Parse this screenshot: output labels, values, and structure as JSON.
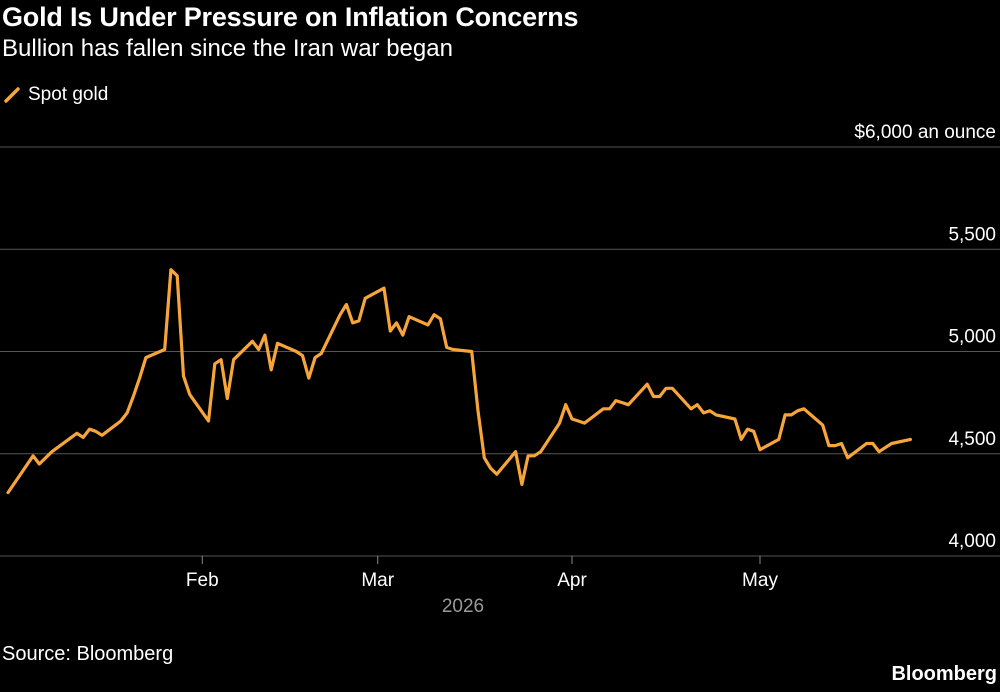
{
  "header": {
    "title": "Gold Is Under Pressure on Inflation Concerns",
    "subtitle": "Bullion has fallen since the Iran war began"
  },
  "footer": {
    "source": "Source: Bloomberg",
    "brand": "Bloomberg"
  },
  "colors": {
    "background": "#000000",
    "series": "#f7a53a",
    "grid": "#555555",
    "text": "#ffffff",
    "muted": "#9a9a9a"
  },
  "chart_data": {
    "type": "line",
    "title": "Gold Is Under Pressure on Inflation Concerns",
    "subtitle": "Bullion has fallen since the Iran war began",
    "grid": true,
    "legend_position": "top-left",
    "ylim": [
      4000,
      6000
    ],
    "y_ticks": [
      {
        "value": 4000,
        "label": "4,000"
      },
      {
        "value": 4500,
        "label": "4,500"
      },
      {
        "value": 5000,
        "label": "5,000"
      },
      {
        "value": 5500,
        "label": "5,500"
      },
      {
        "value": 6000,
        "label": "$6,000 an ounce"
      }
    ],
    "xlim": [
      "2026-01-01",
      "2026-05-31"
    ],
    "x_ticks": [
      {
        "date": "2026-02-01",
        "label": "Feb"
      },
      {
        "date": "2026-03-01",
        "label": "Mar"
      },
      {
        "date": "2026-04-01",
        "label": "Apr"
      },
      {
        "date": "2026-05-01",
        "label": "May"
      }
    ],
    "x_year_label": "2026",
    "series": [
      {
        "name": "Spot gold",
        "x": [
          "2026-01-01",
          "2026-01-05",
          "2026-01-06",
          "2026-01-08",
          "2026-01-12",
          "2026-01-13",
          "2026-01-14",
          "2026-01-15",
          "2026-01-16",
          "2026-01-19",
          "2026-01-20",
          "2026-01-21",
          "2026-01-22",
          "2026-01-23",
          "2026-01-26",
          "2026-01-27",
          "2026-01-28",
          "2026-01-29",
          "2026-01-30",
          "2026-02-02",
          "2026-02-03",
          "2026-02-04",
          "2026-02-05",
          "2026-02-06",
          "2026-02-09",
          "2026-02-10",
          "2026-02-11",
          "2026-02-12",
          "2026-02-13",
          "2026-02-16",
          "2026-02-17",
          "2026-02-18",
          "2026-02-19",
          "2026-02-20",
          "2026-02-23",
          "2026-02-24",
          "2026-02-25",
          "2026-02-26",
          "2026-02-27",
          "2026-03-02",
          "2026-03-03",
          "2026-03-04",
          "2026-03-05",
          "2026-03-06",
          "2026-03-09",
          "2026-03-10",
          "2026-03-11",
          "2026-03-12",
          "2026-03-13",
          "2026-03-16",
          "2026-03-17",
          "2026-03-18",
          "2026-03-19",
          "2026-03-20",
          "2026-03-23",
          "2026-03-24",
          "2026-03-25",
          "2026-03-26",
          "2026-03-27",
          "2026-03-30",
          "2026-03-31",
          "2026-04-01",
          "2026-04-02",
          "2026-04-03",
          "2026-04-06",
          "2026-04-07",
          "2026-04-08",
          "2026-04-09",
          "2026-04-10",
          "2026-04-13",
          "2026-04-14",
          "2026-04-15",
          "2026-04-16",
          "2026-04-17",
          "2026-04-20",
          "2026-04-21",
          "2026-04-22",
          "2026-04-23",
          "2026-04-24",
          "2026-04-27",
          "2026-04-28",
          "2026-04-29",
          "2026-04-30",
          "2026-05-01",
          "2026-05-04",
          "2026-05-05",
          "2026-05-06",
          "2026-05-07",
          "2026-05-08",
          "2026-05-11",
          "2026-05-12",
          "2026-05-13",
          "2026-05-14",
          "2026-05-15",
          "2026-05-18",
          "2026-05-19",
          "2026-05-20",
          "2026-05-21",
          "2026-05-22",
          "2026-05-25"
        ],
        "values": [
          4310,
          4490,
          4450,
          4510,
          4600,
          4580,
          4620,
          4610,
          4590,
          4660,
          4700,
          4780,
          4870,
          4970,
          5010,
          5400,
          5370,
          4880,
          4790,
          4660,
          4940,
          4960,
          4770,
          4960,
          5050,
          5010,
          5080,
          4910,
          5040,
          5000,
          4980,
          4870,
          4970,
          4990,
          5180,
          5230,
          5140,
          5150,
          5260,
          5310,
          5100,
          5140,
          5080,
          5170,
          5130,
          5180,
          5160,
          5020,
          5010,
          5000,
          4710,
          4480,
          4430,
          4400,
          4510,
          4350,
          4490,
          4490,
          4510,
          4650,
          4740,
          4670,
          4660,
          4650,
          4720,
          4720,
          4760,
          4750,
          4740,
          4840,
          4780,
          4780,
          4820,
          4820,
          4720,
          4740,
          4700,
          4710,
          4690,
          4670,
          4570,
          4620,
          4610,
          4520,
          4570,
          4690,
          4690,
          4710,
          4720,
          4640,
          4540,
          4540,
          4550,
          4480,
          4550,
          4550,
          4510,
          4530,
          4550,
          4570
        ]
      }
    ]
  }
}
